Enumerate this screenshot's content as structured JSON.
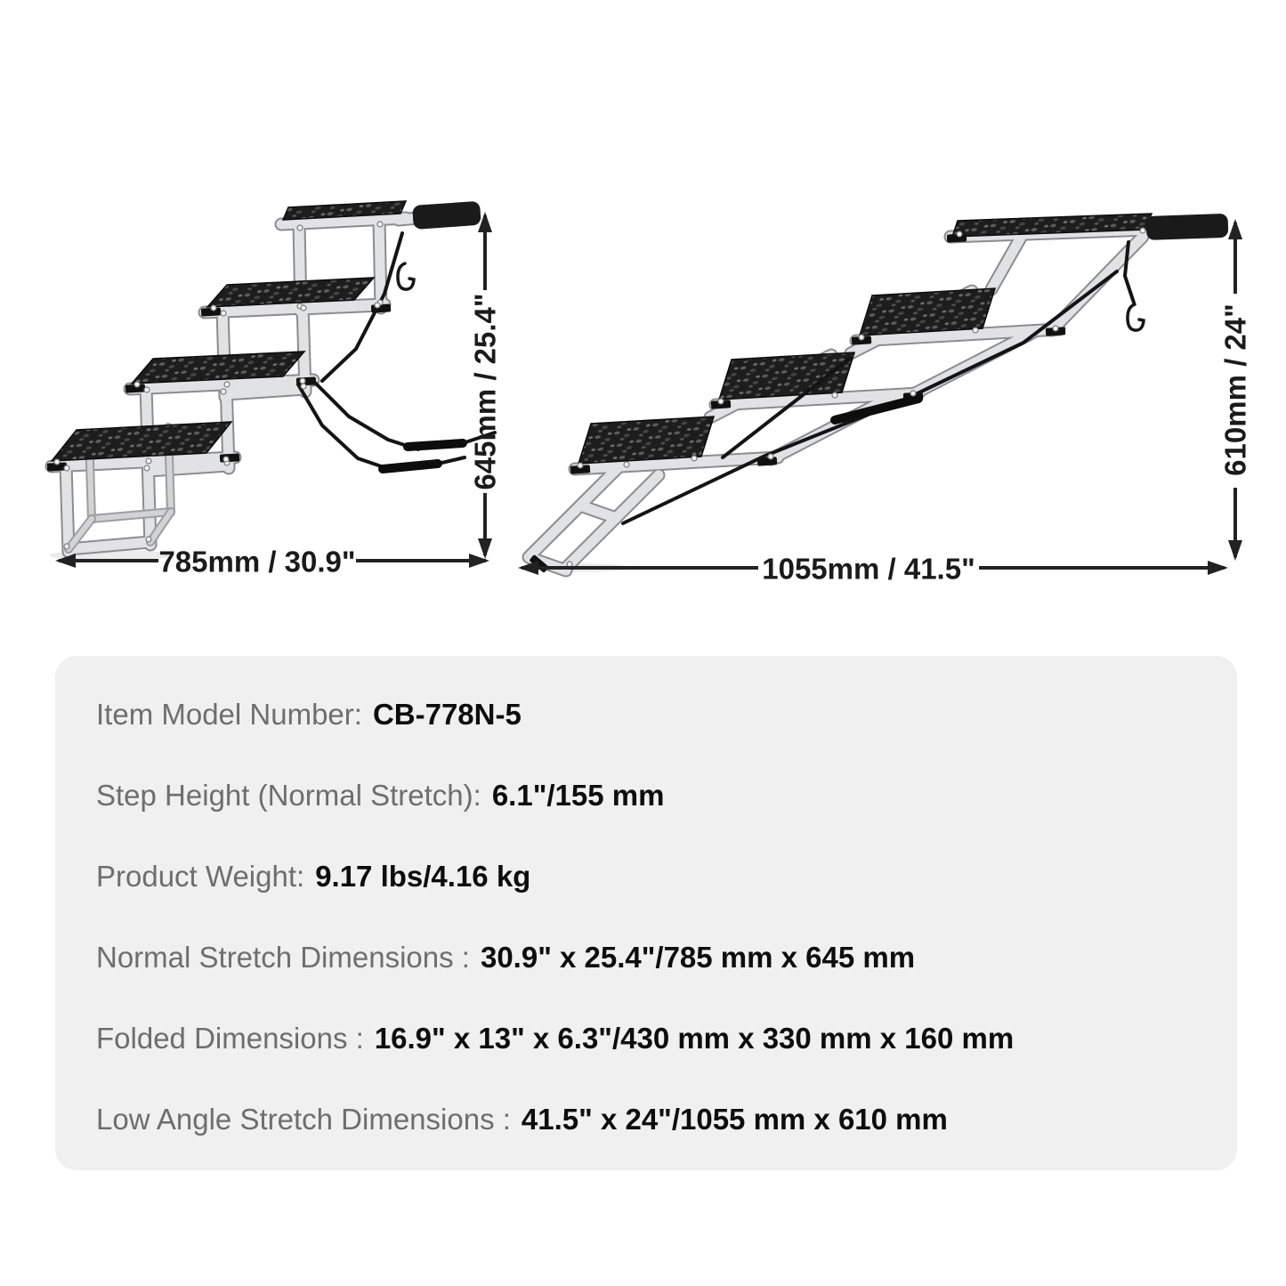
{
  "diagrams": {
    "left": {
      "name": "normal stretch stairs diagram",
      "width_label": "785mm / 30.9\"",
      "height_label": "645mm / 25.4\""
    },
    "right": {
      "name": "low angle stretch stairs diagram",
      "width_label": "1055mm / 41.5\"",
      "height_label": "610mm / 24\""
    }
  },
  "specs": {
    "panel_bg": "#f0f0f0",
    "label_color": "#6e6e6e",
    "value_color": "#0d0d0d",
    "rows": [
      {
        "label": "Item Model Number:",
        "value": "CB-778N-5"
      },
      {
        "label": "Step Height (Normal Stretch):",
        "value": "6.1\"/155 mm"
      },
      {
        "label": "Product Weight:",
        "value": "9.17 lbs/4.16 kg"
      },
      {
        "label": "Normal Stretch Dimensions :",
        "value": "30.9\" x 25.4\"/785 mm x 645 mm"
      },
      {
        "label": "Folded Dimensions :",
        "value": "16.9\" x 13\" x 6.3\"/430 mm x 330 mm x 160 mm"
      },
      {
        "label": "Low Angle Stretch Dimensions :",
        "value": "41.5\" x 24\"/1055 mm x 610 mm"
      }
    ]
  }
}
